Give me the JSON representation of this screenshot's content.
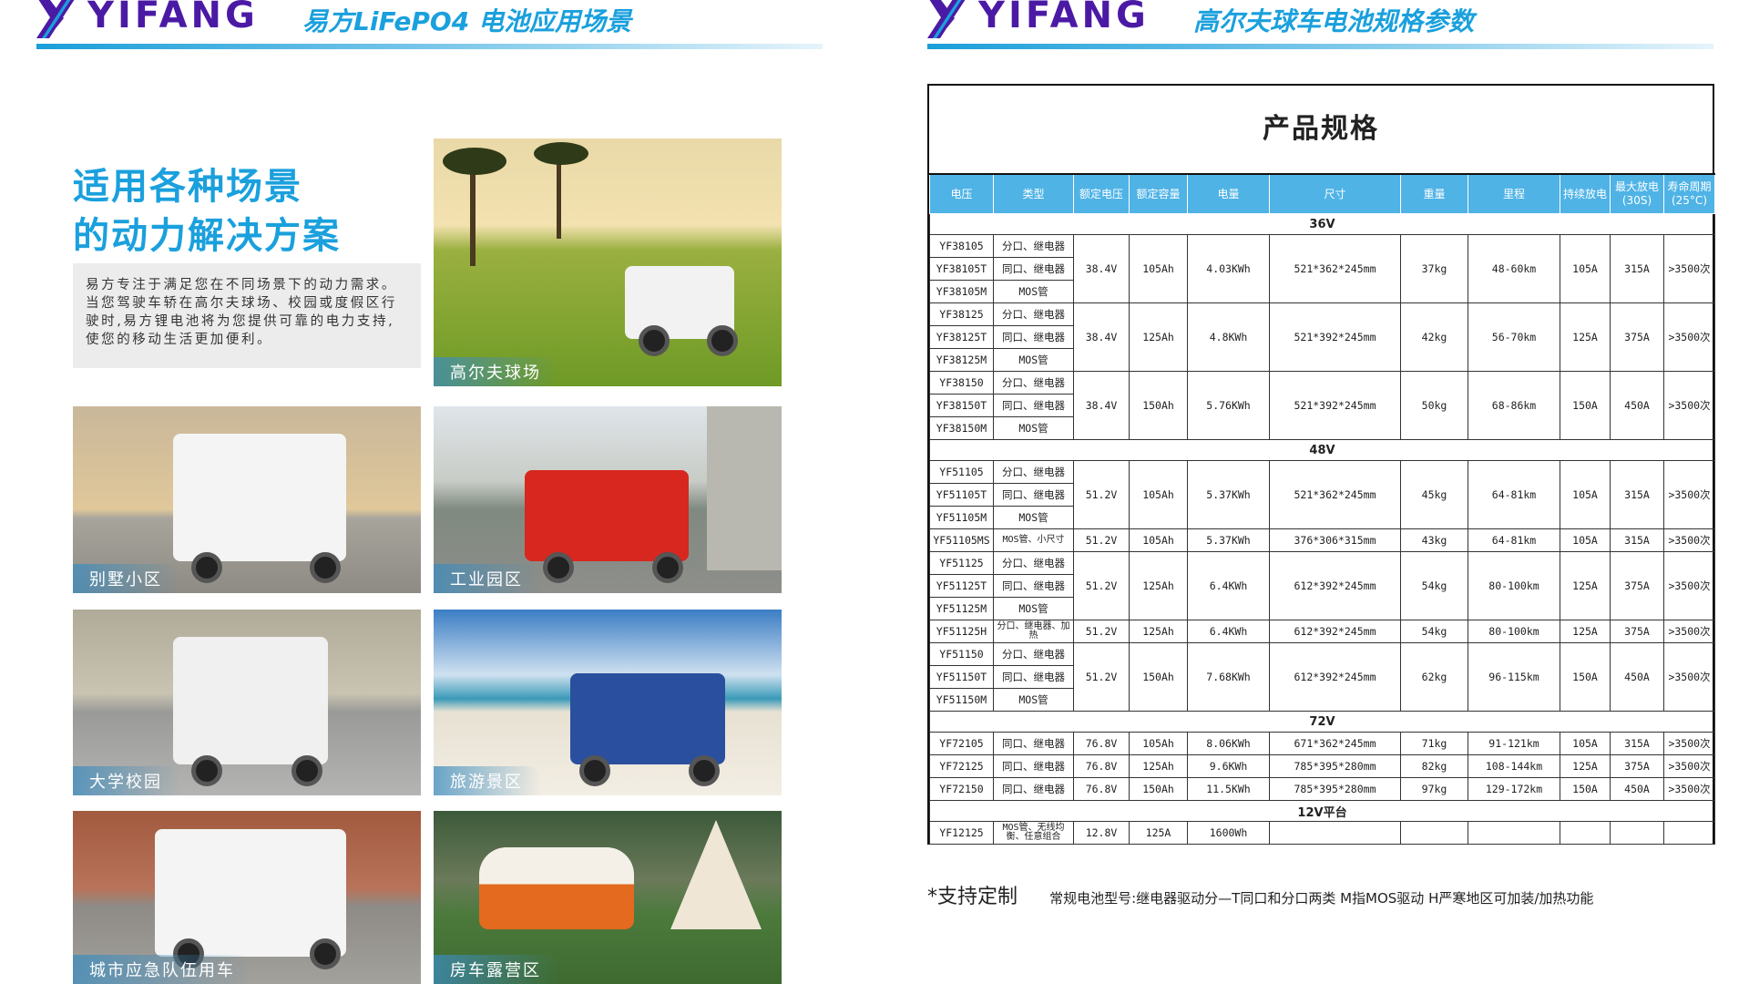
{
  "left_header": {
    "brand": "YIFANG",
    "title": "易方LiFePO4 电池应用场景"
  },
  "right_header": {
    "brand": "YIFANG",
    "title": "高尔夫球车电池规格参数"
  },
  "colors": {
    "brand_purple": "#4b1aa5",
    "accent_blue": "#1aa0dd",
    "table_header": "#4fb3e6"
  },
  "headline": [
    "适用各种场景",
    "的动力解决方案"
  ],
  "intro": "易方专注于满足您在不同场景下的动力需求。当您驾驶车轿在高尔夫球场、校园或度假区行驶时,易方锂电池将为您提供可靠的电力支持,使您的移动生活更加便利。",
  "scenes": [
    {
      "label": "高尔夫球场"
    },
    {
      "label": "别墅小区"
    },
    {
      "label": "工业园区"
    },
    {
      "label": "大学校园"
    },
    {
      "label": "旅游景区"
    },
    {
      "label": "城市应急队伍用车"
    },
    {
      "label": "房车露营区"
    }
  ],
  "spec_table": {
    "title": "产品规格",
    "columns": [
      "电压",
      "类型",
      "额定电压",
      "额定容量",
      "电量",
      "尺寸",
      "重量",
      "里程",
      "持续放电",
      "最大放电(30S)",
      "寿命周期(25°C)"
    ],
    "groups": [
      {
        "label": "36V",
        "items": [
          {
            "models": [
              {
                "model": "YF38105",
                "type": "分口、继电器"
              },
              {
                "model": "YF38105T",
                "type": "同口、继电器"
              },
              {
                "model": "YF38105M",
                "type": "MOS管"
              }
            ],
            "voltage": "38.4V",
            "capacity": "105Ah",
            "energy": "4.03KWh",
            "size": "521*362*245mm",
            "weight": "37kg",
            "range": "48-60km",
            "cont": "105A",
            "max": "315A",
            "life": ">3500次"
          },
          {
            "models": [
              {
                "model": "YF38125",
                "type": "分口、继电器"
              },
              {
                "model": "YF38125T",
                "type": "同口、继电器"
              },
              {
                "model": "YF38125M",
                "type": "MOS管"
              }
            ],
            "voltage": "38.4V",
            "capacity": "125Ah",
            "energy": "4.8KWh",
            "size": "521*392*245mm",
            "weight": "42kg",
            "range": "56-70km",
            "cont": "125A",
            "max": "375A",
            "life": ">3500次"
          },
          {
            "models": [
              {
                "model": "YF38150",
                "type": "分口、继电器"
              },
              {
                "model": "YF38150T",
                "type": "同口、继电器"
              },
              {
                "model": "YF38150M",
                "type": "MOS管"
              }
            ],
            "voltage": "38.4V",
            "capacity": "150Ah",
            "energy": "5.76KWh",
            "size": "521*392*245mm",
            "weight": "50kg",
            "range": "68-86km",
            "cont": "150A",
            "max": "450A",
            "life": ">3500次"
          }
        ]
      },
      {
        "label": "48V",
        "items": [
          {
            "models": [
              {
                "model": "YF51105",
                "type": "分口、继电器"
              },
              {
                "model": "YF51105T",
                "type": "同口、继电器"
              },
              {
                "model": "YF51105M",
                "type": "MOS管"
              }
            ],
            "voltage": "51.2V",
            "capacity": "105Ah",
            "energy": "5.37KWh",
            "size": "521*362*245mm",
            "weight": "45kg",
            "range": "64-81km",
            "cont": "105A",
            "max": "315A",
            "life": ">3500次"
          },
          {
            "models": [
              {
                "model": "YF51105MS",
                "type": "MOS管、小尺寸"
              }
            ],
            "voltage": "51.2V",
            "capacity": "105Ah",
            "energy": "5.37KWh",
            "size": "376*306*315mm",
            "weight": "43kg",
            "range": "64-81km",
            "cont": "105A",
            "max": "315A",
            "life": ">3500次"
          },
          {
            "models": [
              {
                "model": "YF51125",
                "type": "分口、继电器"
              },
              {
                "model": "YF51125T",
                "type": "同口、继电器"
              },
              {
                "model": "YF51125M",
                "type": "MOS管"
              }
            ],
            "voltage": "51.2V",
            "capacity": "125Ah",
            "energy": "6.4KWh",
            "size": "612*392*245mm",
            "weight": "54kg",
            "range": "80-100km",
            "cont": "125A",
            "max": "375A",
            "life": ">3500次"
          },
          {
            "models": [
              {
                "model": "YF51125H",
                "type": "分口、继电器、加热"
              }
            ],
            "voltage": "51.2V",
            "capacity": "125Ah",
            "energy": "6.4KWh",
            "size": "612*392*245mm",
            "weight": "54kg",
            "range": "80-100km",
            "cont": "125A",
            "max": "375A",
            "life": ">3500次"
          },
          {
            "models": [
              {
                "model": "YF51150",
                "type": "分口、继电器"
              },
              {
                "model": "YF51150T",
                "type": "同口、继电器"
              },
              {
                "model": "YF51150M",
                "type": "MOS管"
              }
            ],
            "voltage": "51.2V",
            "capacity": "150Ah",
            "energy": "7.68KWh",
            "size": "612*392*245mm",
            "weight": "62kg",
            "range": "96-115km",
            "cont": "150A",
            "max": "450A",
            "life": ">3500次"
          }
        ]
      },
      {
        "label": "72V",
        "items": [
          {
            "models": [
              {
                "model": "YF72105",
                "type": "同口、继电器"
              }
            ],
            "voltage": "76.8V",
            "capacity": "105Ah",
            "energy": "8.06KWh",
            "size": "671*362*245mm",
            "weight": "71kg",
            "range": "91-121km",
            "cont": "105A",
            "max": "315A",
            "life": ">3500次"
          },
          {
            "models": [
              {
                "model": "YF72125",
                "type": "同口、继电器"
              }
            ],
            "voltage": "76.8V",
            "capacity": "125Ah",
            "energy": "9.6KWh",
            "size": "785*395*280mm",
            "weight": "82kg",
            "range": "108-144km",
            "cont": "125A",
            "max": "375A",
            "life": ">3500次"
          },
          {
            "models": [
              {
                "model": "YF72150",
                "type": "同口、继电器"
              }
            ],
            "voltage": "76.8V",
            "capacity": "150Ah",
            "energy": "11.5KWh",
            "size": "785*395*280mm",
            "weight": "97kg",
            "range": "129-172km",
            "cont": "150A",
            "max": "450A",
            "life": ">3500次"
          }
        ]
      },
      {
        "label": "12V平台",
        "items": [
          {
            "models": [
              {
                "model": "YF12125",
                "type": "MOS管、无线均衡、任意组合"
              }
            ],
            "voltage": "12.8V",
            "capacity": "125A",
            "energy": "1600Wh",
            "size": "",
            "weight": "",
            "range": "",
            "cont": "",
            "max": "",
            "life": ""
          }
        ]
      }
    ]
  },
  "footer": {
    "custom": "*支持定制",
    "note": "常规电池型号:继电器驱动分—T同口和分口两类  M指MOS驱动  H严寒地区可加装/加热功能"
  }
}
